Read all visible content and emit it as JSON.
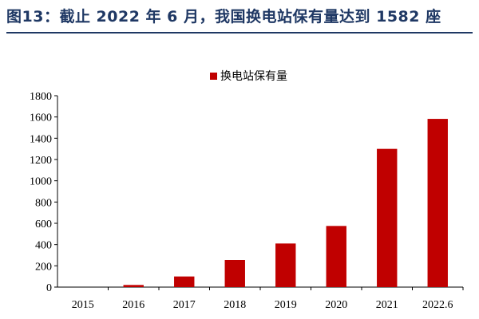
{
  "figure_title": "图13：截止 2022 年 6 月，我国换电站保有量达到 1582 座",
  "colors": {
    "bar": "#c00000",
    "title": "#1f3864",
    "axis": "#000000"
  },
  "chart_data": {
    "type": "bar",
    "categories": [
      "2015",
      "2016",
      "2017",
      "2018",
      "2019",
      "2020",
      "2021",
      "2022.6"
    ],
    "series": [
      {
        "name": "换电站保有量",
        "values": [
          0,
          20,
          100,
          255,
          410,
          575,
          1300,
          1582
        ]
      }
    ],
    "ylim": [
      0,
      1800
    ],
    "yticks": [
      0,
      200,
      400,
      600,
      800,
      1000,
      1200,
      1400,
      1600,
      1800
    ],
    "legend_position": "top-center",
    "grid": false,
    "xlabel": "",
    "ylabel": ""
  }
}
